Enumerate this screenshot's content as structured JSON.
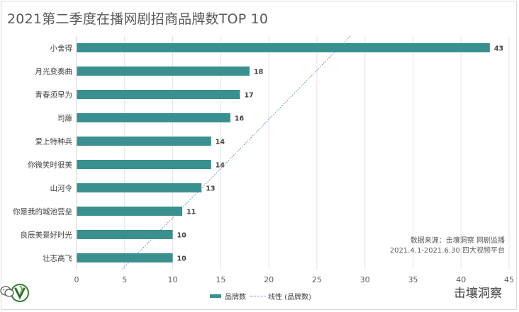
{
  "title": "2021第二季度在播网剧招商品牌数TOP 10",
  "chart_data": {
    "type": "bar",
    "orientation": "horizontal",
    "categories": [
      "小舍得",
      "月光变奏曲",
      "青春须早为",
      "司藤",
      "爱上特种兵",
      "你微笑时很美",
      "山河令",
      "你是我的城池营垒",
      "良辰美景好时光",
      "壮志高飞"
    ],
    "series": [
      {
        "name": "品牌数",
        "values": [
          43,
          18,
          17,
          16,
          14,
          14,
          13,
          11,
          10,
          10
        ]
      }
    ],
    "trendline": {
      "name": "线性 (品牌数)",
      "type": "linear"
    },
    "xlim": [
      0,
      45
    ],
    "xticks": [
      0,
      5,
      10,
      15,
      20,
      25,
      30,
      35,
      40,
      45
    ],
    "bar_color": "#3a8f8f",
    "trend_color": "#4f81bd",
    "grid": true,
    "legend": "bottom"
  },
  "source_note": {
    "line1": "数据来源：击壤洞察 网剧监播",
    "line2": "2021.4.1-2021.6.30 四大视频平台"
  },
  "legend": {
    "bar_label": "品牌数",
    "line_label": "线性 (品牌数)"
  },
  "brand": {
    "name": "击壤洞察"
  }
}
